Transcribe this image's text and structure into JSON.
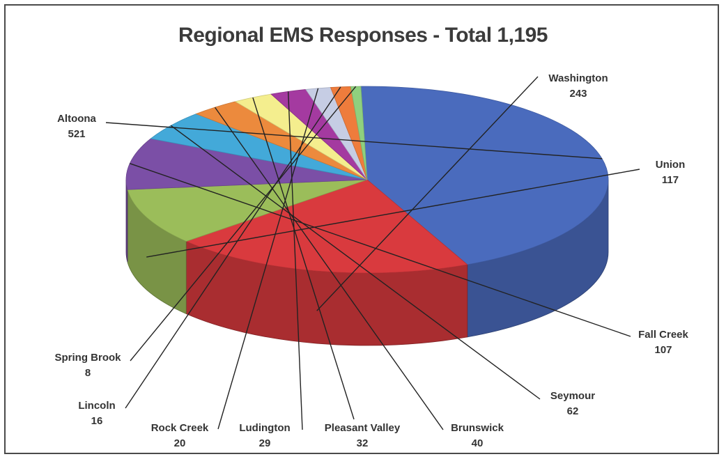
{
  "chart_data": {
    "type": "pie",
    "title": "Regional EMS Responses - Total 1,195",
    "slices": [
      {
        "label": "Altoona",
        "value": 521,
        "color": "#4a6bbd"
      },
      {
        "label": "Washington",
        "value": 243,
        "color": "#d93a3e"
      },
      {
        "label": "Union",
        "value": 117,
        "color": "#9bbd5a"
      },
      {
        "label": "Fall Creek",
        "value": 107,
        "color": "#7b4fa6"
      },
      {
        "label": "Seymour",
        "value": 62,
        "color": "#43a9d9"
      },
      {
        "label": "Brunswick",
        "value": 40,
        "color": "#ec8a3d"
      },
      {
        "label": "Pleasant Valley",
        "value": 32,
        "color": "#f4ee8e"
      },
      {
        "label": "Ludington",
        "value": 29,
        "color": "#a43aa0"
      },
      {
        "label": "Rock Creek",
        "value": 20,
        "color": "#c6cde4"
      },
      {
        "label": "Lincoln",
        "value": 16,
        "color": "#ee7c3c"
      },
      {
        "label": "Spring Brook",
        "value": 8,
        "color": "#8fd07e"
      }
    ]
  }
}
